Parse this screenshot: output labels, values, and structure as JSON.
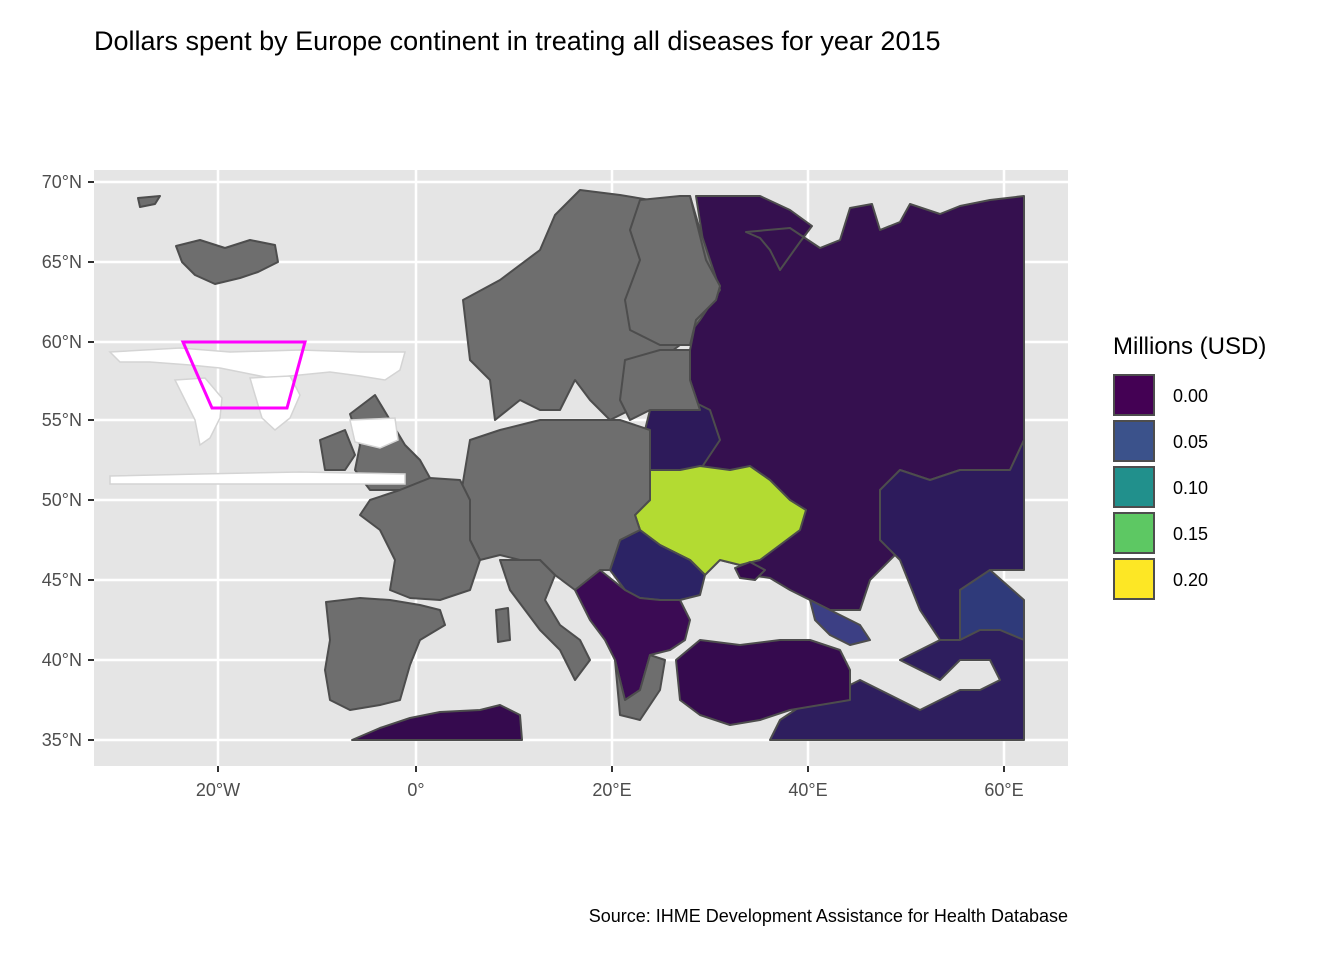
{
  "title": "Dollars spent by Europe continent in treating all diseases for year 2015",
  "caption": "Source: IHME Development Assistance for Health Database",
  "legend": {
    "title": "Millions (USD)",
    "items": [
      {
        "label": "0.00",
        "color": "#440154"
      },
      {
        "label": "0.05",
        "color": "#3B528B"
      },
      {
        "label": "0.10",
        "color": "#21908C"
      },
      {
        "label": "0.15",
        "color": "#5DC863"
      },
      {
        "label": "0.20",
        "color": "#FDE725"
      }
    ]
  },
  "axes": {
    "x_ticks": [
      "20°W",
      "0°",
      "20°E",
      "40°E",
      "60°E"
    ],
    "y_ticks": [
      "70°N",
      "65°N",
      "60°N",
      "55°N",
      "50°N",
      "45°N",
      "40°N",
      "35°N"
    ]
  },
  "colors": {
    "panel_bg": "#E5E5E5",
    "no_data": "#6E6E6E",
    "border": "#4D4D4D",
    "inset_highlight": "#FF00FF",
    "ukraine": "#B4DE2C",
    "moldova_romania_belarus": "#2A2A6A"
  }
}
